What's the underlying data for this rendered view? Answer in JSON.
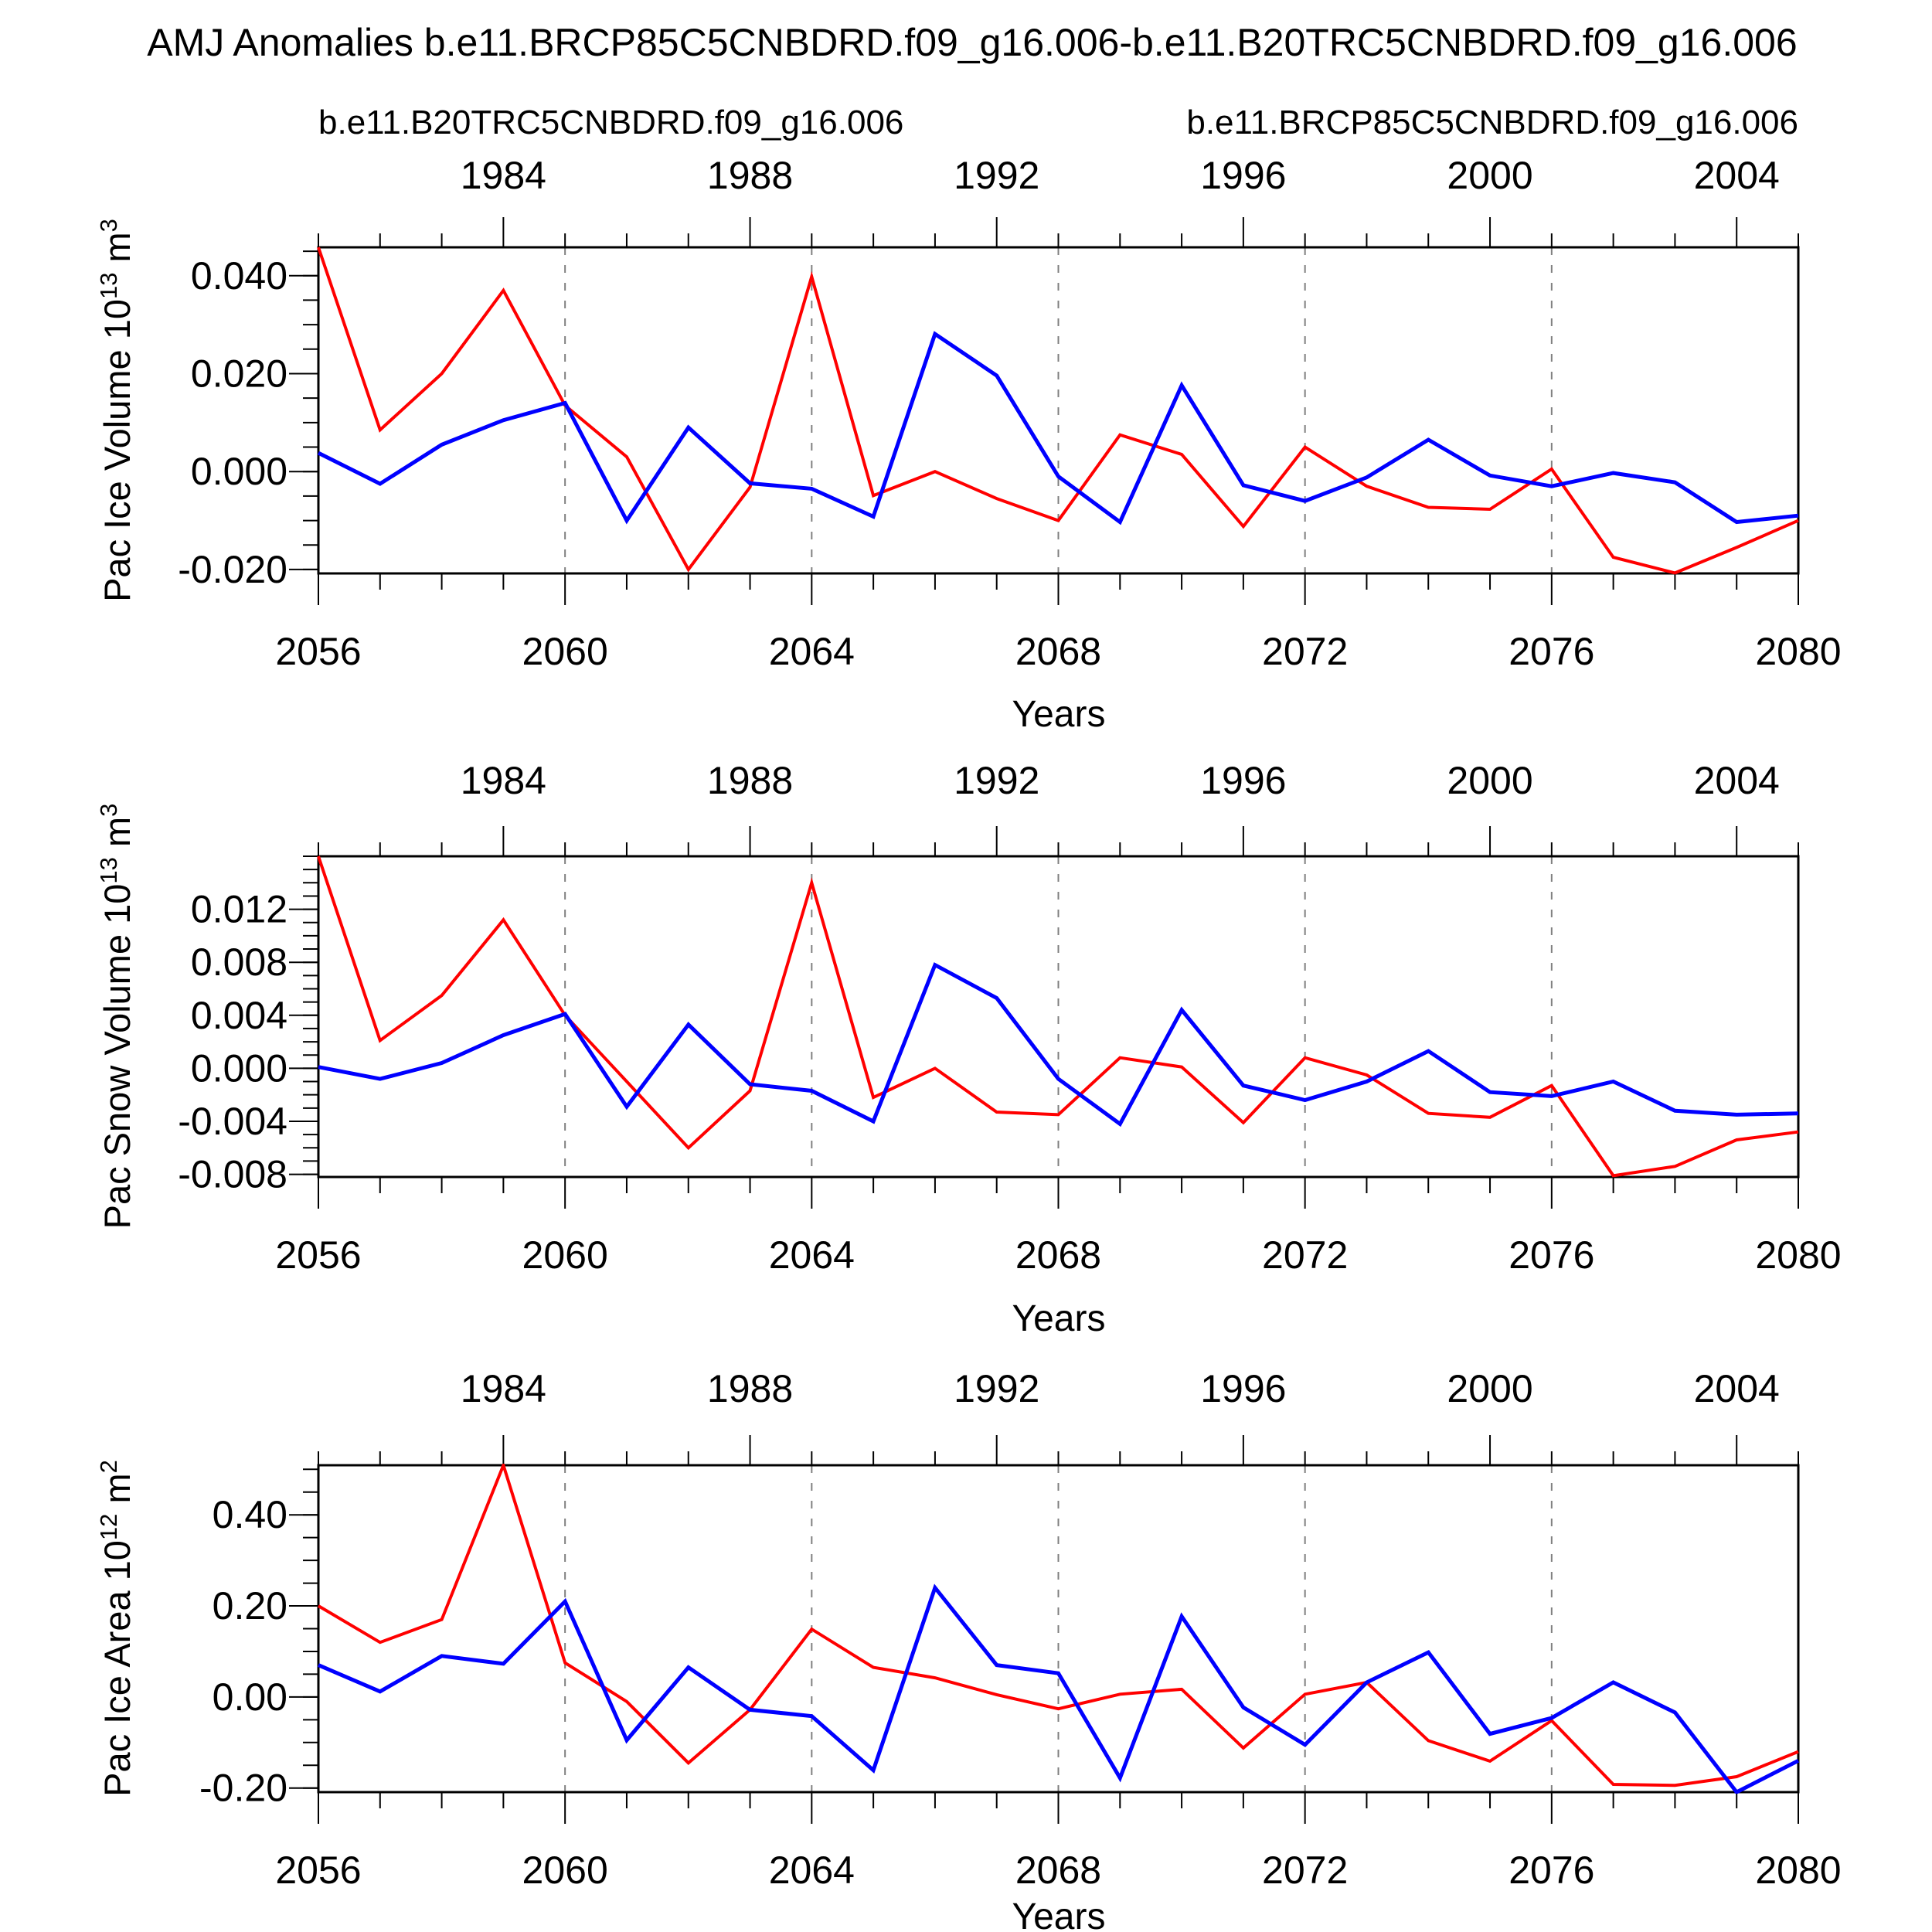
{
  "title": "AMJ Anomalies b.e11.BRCP85C5CNBDRD.f09_g16.006-b.e11.B20TRC5CNBDRD.f09_g16.006",
  "legend": {
    "red_label": "b.e11.B20TRC5CNBDRD.f09_g16.006",
    "blue_label": "b.e11.BRCP85C5CNBDRD.f09_g16.006",
    "red_color": "#ff0000",
    "blue_color": "#0000ff"
  },
  "xlabel": "Years",
  "chart_data": [
    {
      "type": "line",
      "ylabel": "Pac Ice Volume 10^13 m^3",
      "ylabel_parts": {
        "text": "Pac Ice Volume 10",
        "exp": "13",
        "unit": " m",
        "unit_exp": "3"
      },
      "x": [
        2056,
        2057,
        2058,
        2059,
        2060,
        2061,
        2062,
        2063,
        2064,
        2065,
        2066,
        2067,
        2068,
        2069,
        2070,
        2071,
        2072,
        2073,
        2074,
        2075,
        2076,
        2077,
        2078,
        2079,
        2080
      ],
      "series": [
        {
          "name": "b.e11.B20TRC5CNBDRD.f09_g16.006",
          "color": "#ff0000",
          "values": [
            0.0458,
            0.0085,
            0.02,
            0.037,
            0.0135,
            0.003,
            -0.02,
            -0.0032,
            0.0398,
            -0.0049,
            0.0,
            -0.0055,
            -0.01,
            0.0075,
            0.0035,
            -0.0112,
            0.005,
            -0.003,
            -0.0073,
            -0.0077,
            0.0005,
            -0.0175,
            -0.0207,
            -0.0155,
            -0.01
          ]
        },
        {
          "name": "b.e11.BRCP85C5CNBDRD.f09_g16.006",
          "color": "#0000ff",
          "values": [
            0.0038,
            -0.0025,
            0.0055,
            0.0105,
            0.014,
            -0.01,
            0.009,
            -0.0024,
            -0.0035,
            -0.0092,
            0.0281,
            0.0196,
            -0.001,
            -0.0103,
            0.0176,
            -0.0028,
            -0.006,
            -0.0012,
            0.0065,
            -0.0008,
            -0.003,
            -0.0003,
            -0.0022,
            -0.0103,
            -0.009
          ]
        }
      ],
      "ylim": [
        -0.0208,
        0.0458
      ],
      "yticks": {
        "values": [
          0.04,
          0.02,
          0.0,
          -0.02
        ],
        "labels": [
          "0.040",
          "0.020",
          "0.000",
          "-0.020"
        ],
        "minor_step": 0.005
      },
      "xticks_bottom": {
        "years": [
          2056,
          2060,
          2064,
          2068,
          2072,
          2076,
          2080
        ],
        "labels": [
          "2056",
          "2060",
          "2064",
          "2068",
          "2072",
          "2076",
          "2080"
        ]
      },
      "top_axis": {
        "range": [
          1981,
          2005
        ],
        "label_years": [
          1984,
          1988,
          1992,
          1996,
          2000,
          2004
        ],
        "labels": [
          "1984",
          "1988",
          "1992",
          "1996",
          "2000",
          "2004"
        ]
      },
      "grid_years": [
        2060,
        2064,
        2068,
        2072,
        2076
      ]
    },
    {
      "type": "line",
      "ylabel": "Pac Snow Volume 10^13 m^3",
      "ylabel_parts": {
        "text": "Pac Snow Volume 10",
        "exp": "13",
        "unit": " m",
        "unit_exp": "3"
      },
      "x": [
        2056,
        2057,
        2058,
        2059,
        2060,
        2061,
        2062,
        2063,
        2064,
        2065,
        2066,
        2067,
        2068,
        2069,
        2070,
        2071,
        2072,
        2073,
        2074,
        2075,
        2076,
        2077,
        2078,
        2079,
        2080
      ],
      "series": [
        {
          "name": "b.e11.B20TRC5CNBDRD.f09_g16.006",
          "color": "#ff0000",
          "values": [
            0.016,
            0.0021,
            0.0055,
            0.0112,
            0.004,
            -0.001,
            -0.006,
            -0.0017,
            0.014,
            -0.0022,
            0.0,
            -0.0033,
            -0.0035,
            0.0008,
            0.0001,
            -0.0041,
            0.0008,
            -0.0005,
            -0.0034,
            -0.0037,
            -0.0013,
            -0.0081,
            -0.0074,
            -0.0054,
            -0.0048
          ]
        },
        {
          "name": "b.e11.BRCP85C5CNBDRD.f09_g16.006",
          "color": "#0000ff",
          "values": [
            0.0001,
            -0.0008,
            0.0004,
            0.0025,
            0.0041,
            -0.0029,
            0.0033,
            -0.0012,
            -0.0017,
            -0.004,
            0.0078,
            0.0053,
            -0.0008,
            -0.0042,
            0.0044,
            -0.0013,
            -0.0024,
            -0.001,
            0.0013,
            -0.0018,
            -0.0021,
            -0.001,
            -0.0032,
            -0.0035,
            -0.0034
          ]
        }
      ],
      "ylim": [
        -0.0082,
        0.016
      ],
      "yticks": {
        "values": [
          0.012,
          0.008,
          0.004,
          0.0,
          -0.004,
          -0.008
        ],
        "labels": [
          "0.012",
          "0.008",
          "0.004",
          "0.000",
          "-0.004",
          "-0.008"
        ],
        "minor_step": 0.001
      },
      "xticks_bottom": {
        "years": [
          2056,
          2060,
          2064,
          2068,
          2072,
          2076,
          2080
        ],
        "labels": [
          "2056",
          "2060",
          "2064",
          "2068",
          "2072",
          "2076",
          "2080"
        ]
      },
      "top_axis": {
        "range": [
          1981,
          2005
        ],
        "label_years": [
          1984,
          1988,
          1992,
          1996,
          2000,
          2004
        ],
        "labels": [
          "1984",
          "1988",
          "1992",
          "1996",
          "2000",
          "2004"
        ]
      },
      "grid_years": [
        2060,
        2064,
        2068,
        2072,
        2076
      ]
    },
    {
      "type": "line",
      "ylabel": "Pac Ice Area 10^12 m^2",
      "ylabel_parts": {
        "text": "Pac Ice Area 10",
        "exp": "12",
        "unit": " m",
        "unit_exp": "2"
      },
      "x": [
        2056,
        2057,
        2058,
        2059,
        2060,
        2061,
        2062,
        2063,
        2064,
        2065,
        2066,
        2067,
        2068,
        2069,
        2070,
        2071,
        2072,
        2073,
        2074,
        2075,
        2076,
        2077,
        2078,
        2079,
        2080
      ],
      "series": [
        {
          "name": "b.e11.B20TRC5CNBDRD.f09_g16.006",
          "color": "#ff0000",
          "values": [
            0.2,
            0.12,
            0.17,
            0.509,
            0.075,
            -0.01,
            -0.145,
            -0.028,
            0.149,
            0.065,
            0.042,
            0.005,
            -0.026,
            0.006,
            0.017,
            -0.112,
            0.006,
            0.032,
            -0.096,
            -0.141,
            -0.052,
            -0.192,
            -0.194,
            -0.175,
            -0.12
          ]
        },
        {
          "name": "b.e11.BRCP85C5CNBDRD.f09_g16.006",
          "color": "#0000ff",
          "values": [
            0.07,
            0.012,
            0.09,
            0.073,
            0.21,
            -0.095,
            0.065,
            -0.028,
            -0.042,
            -0.161,
            0.24,
            0.07,
            0.052,
            -0.178,
            0.177,
            -0.023,
            -0.105,
            0.032,
            0.098,
            -0.081,
            -0.046,
            0.032,
            -0.034,
            -0.209,
            -0.14
          ]
        }
      ],
      "ylim": [
        -0.209,
        0.509
      ],
      "yticks": {
        "values": [
          0.4,
          0.2,
          0.0,
          -0.2
        ],
        "labels": [
          "0.40",
          "0.20",
          "0.00",
          "-0.20"
        ],
        "minor_step": 0.05
      },
      "xticks_bottom": {
        "years": [
          2056,
          2060,
          2064,
          2068,
          2072,
          2076,
          2080
        ],
        "labels": [
          "2056",
          "2060",
          "2064",
          "2068",
          "2072",
          "2076",
          "2080"
        ]
      },
      "top_axis": {
        "range": [
          1981,
          2005
        ],
        "label_years": [
          1984,
          1988,
          1992,
          1996,
          2000,
          2004
        ],
        "labels": [
          "1984",
          "1988",
          "1992",
          "1996",
          "2000",
          "2004"
        ]
      },
      "grid_years": [
        2060,
        2064,
        2068,
        2072,
        2076
      ]
    }
  ]
}
